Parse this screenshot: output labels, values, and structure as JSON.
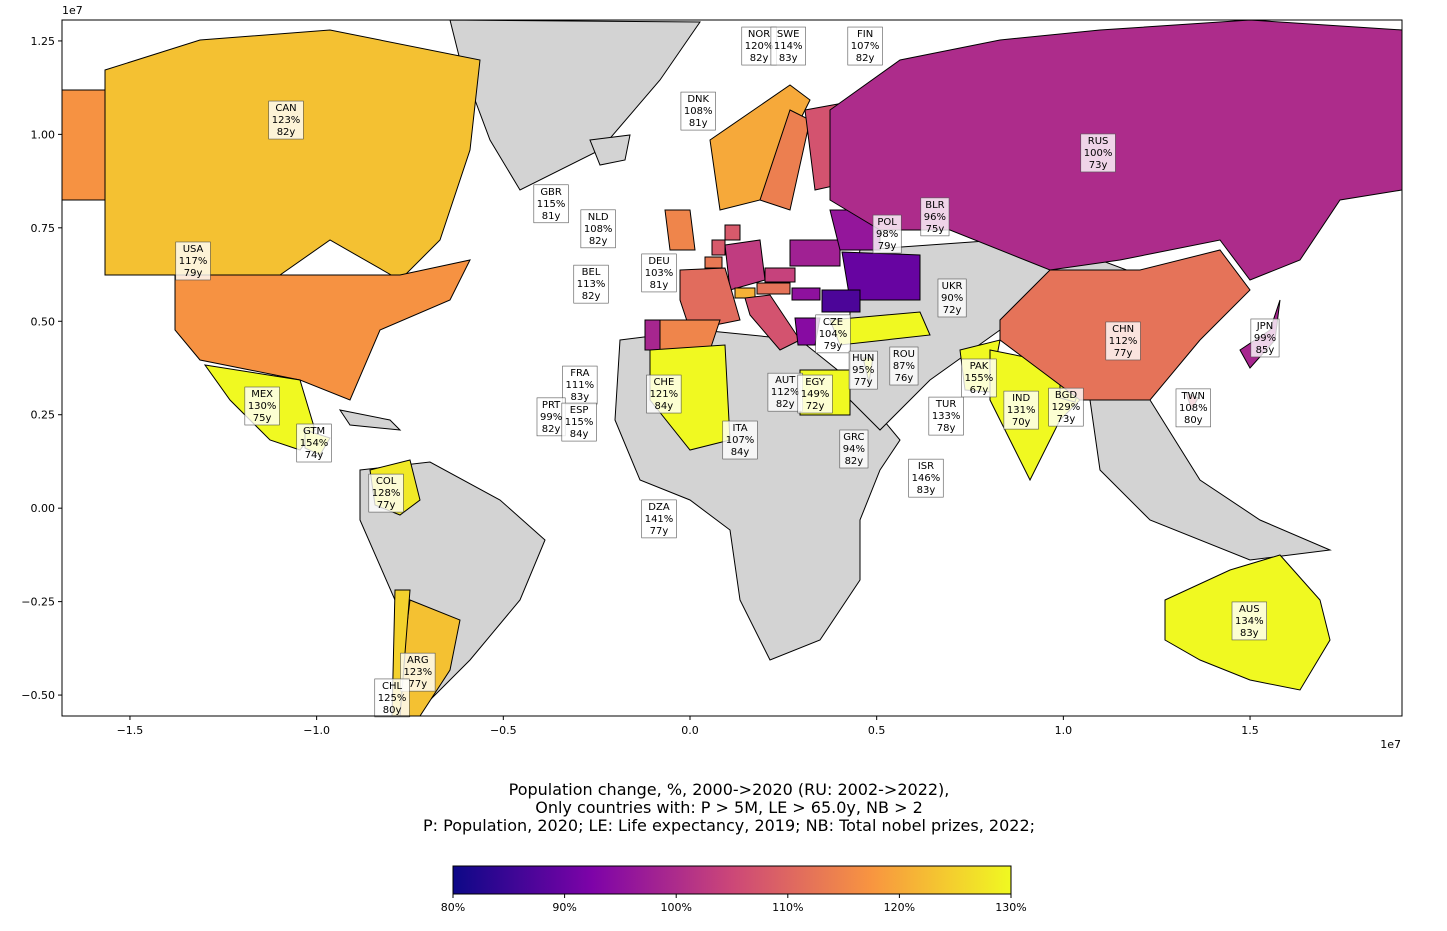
{
  "chart_data": {
    "type": "map",
    "xlim": [
      -1.682,
      1.907
    ],
    "ylim": [
      -0.556,
      1.306
    ],
    "xticks": [
      {
        "value": -1.5,
        "label": "−1.5"
      },
      {
        "value": -1.0,
        "label": "−1.0"
      },
      {
        "value": -0.5,
        "label": "−0.5"
      },
      {
        "value": 0,
        "label": "0.0"
      },
      {
        "value": 0.5,
        "label": "0.5"
      },
      {
        "value": 1.0,
        "label": "1.0"
      },
      {
        "value": 1.5,
        "label": "1.5"
      }
    ],
    "yticks": [
      {
        "value": -0.5,
        "label": "−0.50"
      },
      {
        "value": -0.25,
        "label": "−0.25"
      },
      {
        "value": 0,
        "label": "0.00"
      },
      {
        "value": 0.25,
        "label": "0.25"
      },
      {
        "value": 0.5,
        "label": "0.50"
      },
      {
        "value": 0.75,
        "label": "0.75"
      },
      {
        "value": 1.0,
        "label": "1.00"
      },
      {
        "value": 1.25,
        "label": "1.25"
      }
    ],
    "x_offset_label": "1e7",
    "y_offset_label": "1e7",
    "title_lines": [
      "Population change, %, 2000->2020 (RU: 2002->2022),",
      "Only countries with:  P > 5M, LE > 65.0y, NB > 2",
      "P: Population, 2020; LE: Life expectancy, 2019; NB: Total nobel prizes, 2022;"
    ],
    "land_color": "#d3d3d3",
    "countries": [
      "CAN",
      "USA",
      "MEX",
      "GTM",
      "COL",
      "ARG",
      "CHL",
      "GBR",
      "NLD",
      "BEL",
      "DEU",
      "DNK",
      "NOR",
      "SWE",
      "FIN",
      "FRA",
      "PRT",
      "ESP",
      "CHE",
      "ITA",
      "DZA",
      "AUT",
      "EGY",
      "CZE",
      "HUN",
      "GRC",
      "POL",
      "BLR",
      "UKR",
      "ROU",
      "TUR",
      "ISR",
      "PAK",
      "IND",
      "BGD",
      "CHN",
      "TWN",
      "JPN",
      "RUS",
      "AUS"
    ],
    "change": [
      123,
      117,
      130,
      154,
      128,
      123,
      125,
      115,
      108,
      113,
      103,
      108,
      120,
      114,
      107,
      111,
      99,
      115,
      121,
      107,
      141,
      112,
      149,
      104,
      95,
      94,
      98,
      96,
      90,
      87,
      133,
      146,
      155,
      131,
      129,
      112,
      108,
      99,
      100,
      134
    ],
    "change_labels": [
      "123%",
      "117%",
      "130%",
      "154%",
      "128%",
      "123%",
      "125%",
      "115%",
      "108%",
      "113%",
      "103%",
      "108%",
      "120%",
      "114%",
      "107%",
      "111%",
      "99%",
      "115%",
      "121%",
      "107%",
      "141%",
      "112%",
      "149%",
      "104%",
      "95%",
      "94%",
      "98%",
      "96%",
      "90%",
      "87%",
      "133%",
      "146%",
      "155%",
      "131%",
      "129%",
      "112%",
      "108%",
      "99%",
      "100%",
      "134%"
    ],
    "life": [
      82,
      79,
      75,
      74,
      77,
      77,
      80,
      81,
      82,
      82,
      81,
      81,
      82,
      83,
      82,
      83,
      82,
      84,
      84,
      84,
      77,
      82,
      72,
      79,
      77,
      82,
      79,
      75,
      72,
      76,
      78,
      83,
      67,
      70,
      73,
      77,
      80,
      85,
      73,
      83
    ],
    "life_labels": [
      "82y",
      "79y",
      "75y",
      "74y",
      "77y",
      "77y",
      "80y",
      "81y",
      "82y",
      "82y",
      "81y",
      "81y",
      "82y",
      "83y",
      "82y",
      "83y",
      "82y",
      "84y",
      "84y",
      "84y",
      "77y",
      "82y",
      "72y",
      "79y",
      "77y",
      "82y",
      "79y",
      "75y",
      "72y",
      "76y",
      "78y",
      "83y",
      "67y",
      "70y",
      "73y",
      "77y",
      "80y",
      "85y",
      "73y",
      "83y"
    ],
    "x": [
      -1.082,
      -1.331,
      -1.146,
      -1.007,
      -0.814,
      -0.729,
      -0.798,
      -0.372,
      -0.246,
      -0.265,
      -0.083,
      0.022,
      0.185,
      0.263,
      0.469,
      -0.295,
      -0.372,
      -0.297,
      -0.07,
      0.134,
      -0.083,
      0.255,
      0.335,
      0.383,
      0.464,
      0.439,
      0.528,
      0.656,
      0.702,
      0.573,
      0.686,
      0.632,
      0.774,
      0.887,
      1.007,
      1.16,
      1.348,
      1.54,
      1.093,
      1.498
    ],
    "y": [
      1.041,
      0.664,
      0.276,
      0.177,
      0.043,
      -0.436,
      -0.505,
      0.817,
      0.75,
      0.602,
      0.632,
      1.065,
      1.239,
      1.239,
      1.239,
      0.332,
      0.247,
      0.233,
      0.308,
      0.185,
      -0.026,
      0.313,
      0.308,
      0.469,
      0.372,
      0.161,
      0.736,
      0.782,
      0.565,
      0.383,
      0.249,
      0.083,
      0.351,
      0.265,
      0.273,
      0.45,
      0.271,
      0.458,
      0.953,
      -0.299
    ],
    "colorbar": {
      "clim": [
        80,
        130
      ],
      "colormap": [
        "#0d0887",
        "#7e03a8",
        "#cc4778",
        "#f89540",
        "#f0f921"
      ],
      "ticks": [
        {
          "value": 80,
          "label": "80%"
        },
        {
          "value": 90,
          "label": "90%"
        },
        {
          "value": 100,
          "label": "100%"
        },
        {
          "value": 110,
          "label": "110%"
        },
        {
          "value": 120,
          "label": "120%"
        },
        {
          "value": 130,
          "label": "130%"
        }
      ]
    }
  }
}
